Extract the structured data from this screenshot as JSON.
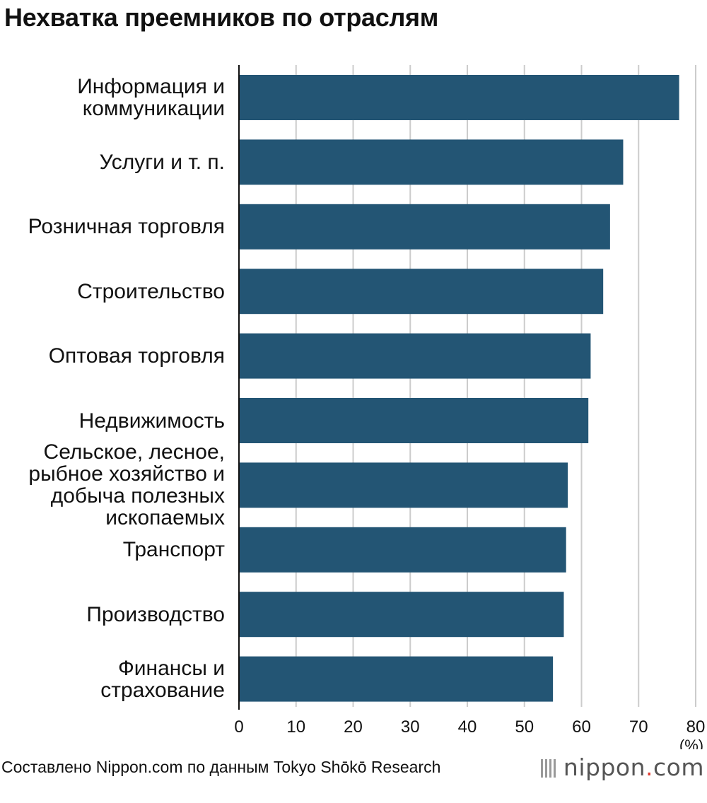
{
  "chart_data": {
    "type": "bar",
    "orientation": "horizontal",
    "title": "Нехватка преемников по отраслям",
    "categories": [
      "Информация и\nкоммуникации",
      "Услуги и т. п.",
      "Розничная торговля",
      "Строительство",
      "Оптовая торговля",
      "Недвижимость",
      "Сельское, лесное,\nрыбное хозяйство и\nдобыча полезных\nископаемых",
      "Транспорт",
      "Производство",
      "Финансы и\nстрахование"
    ],
    "values": [
      77.1,
      67.3,
      65.0,
      63.8,
      61.6,
      61.2,
      57.6,
      57.3,
      56.9,
      55.0
    ],
    "xlim": [
      0,
      80
    ],
    "xticks": [
      0,
      10,
      20,
      30,
      40,
      50,
      60,
      70,
      80
    ],
    "unit_label": "(%)",
    "grid": "vertical",
    "bar_color": "#235574"
  },
  "source": "Составлено Nippon.com по данным Tokyo Shōkō Research",
  "logo": {
    "name": "nippon",
    "dot": ".",
    "suffix": "com"
  }
}
